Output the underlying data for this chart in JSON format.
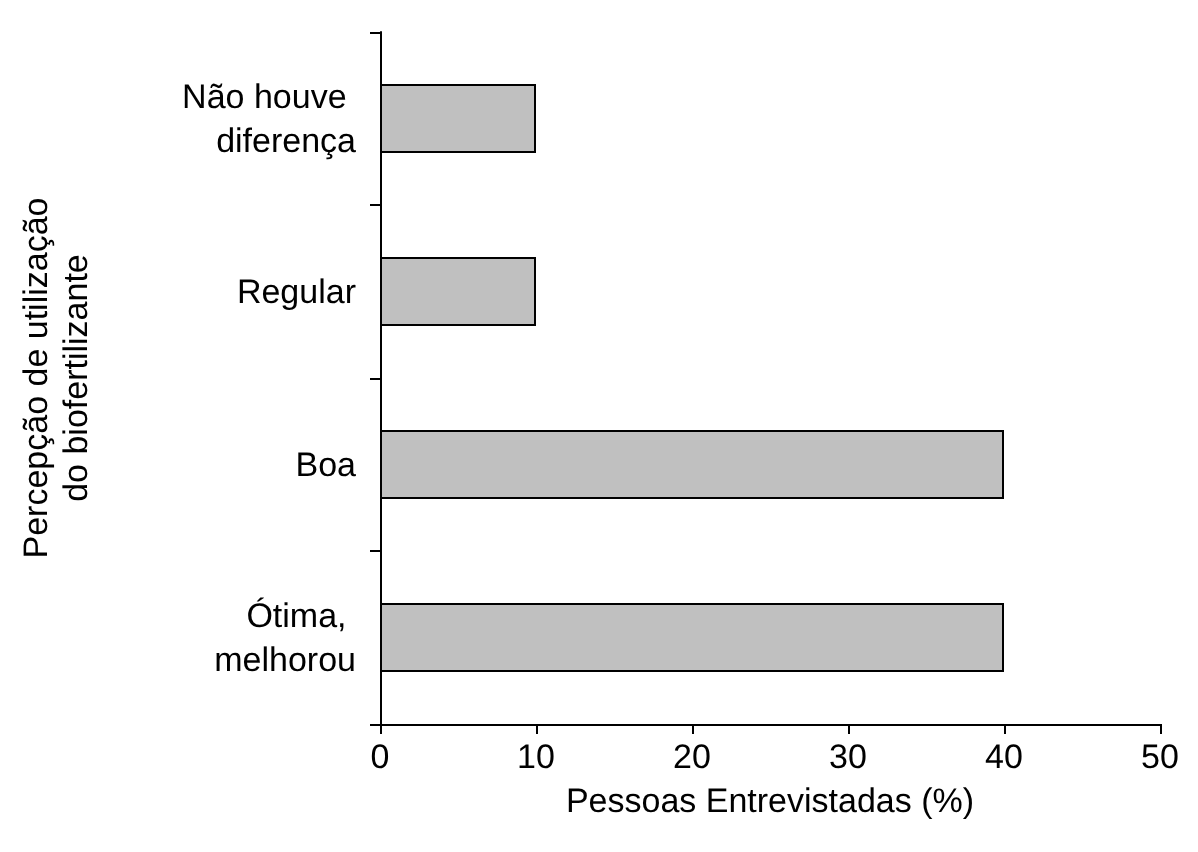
{
  "chart_data": {
    "type": "bar",
    "orientation": "horizontal",
    "categories": [
      "Não houve diferença",
      "Regular",
      "Boa",
      "Ótima, melhorou"
    ],
    "values": [
      10,
      10,
      40,
      40
    ],
    "color": "#c0c0c0",
    "xlabel": "Pessoas Entrevistadas (%)",
    "ylabel": "Percepção de utilização do biofertilizante",
    "xlim": [
      0,
      50
    ],
    "xticks": [
      0,
      10,
      20,
      30,
      40,
      50
    ],
    "grid": false
  }
}
